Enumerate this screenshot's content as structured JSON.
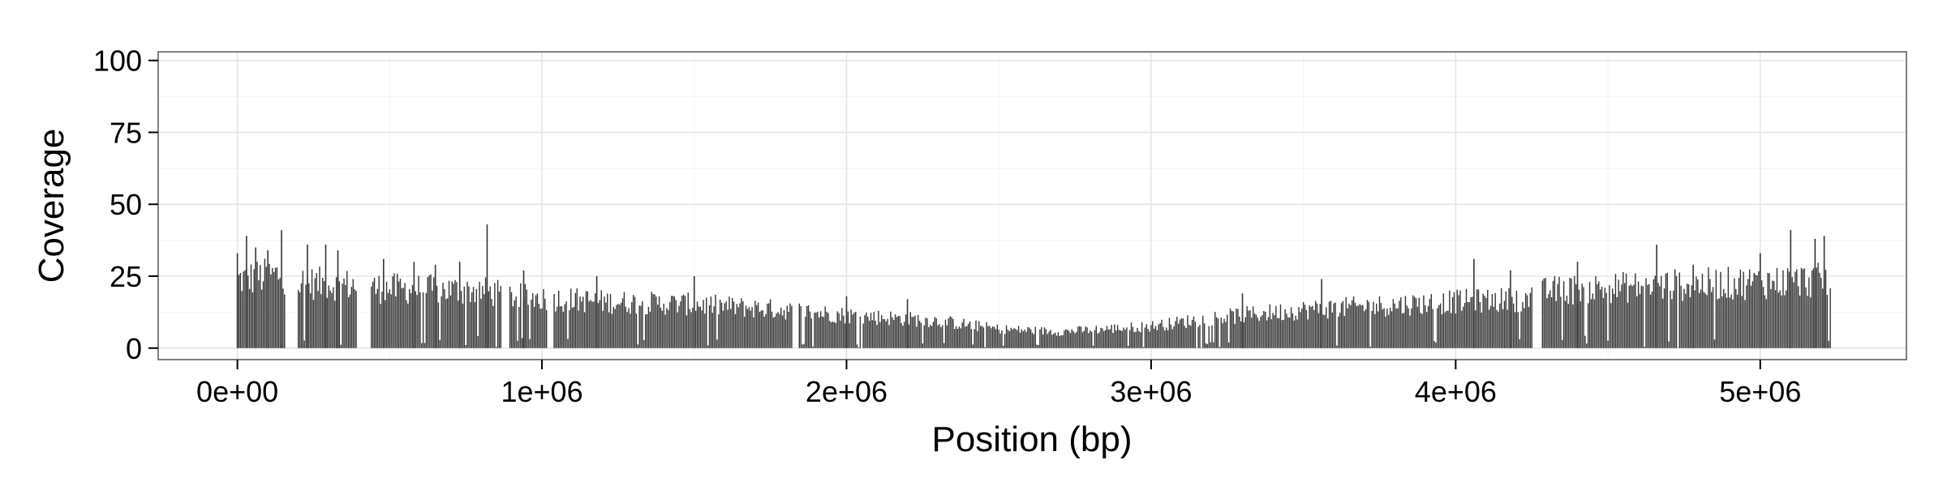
{
  "chart_data": {
    "type": "bar",
    "title": "",
    "xlabel": "Position (bp)",
    "ylabel": "Coverage",
    "xlim": [
      -260000,
      5480000
    ],
    "ylim": [
      -4,
      103
    ],
    "xticks": [
      0,
      1000000,
      2000000,
      3000000,
      4000000,
      5000000
    ],
    "xtick_labels": [
      "0e+00",
      "1e+06",
      "2e+06",
      "3e+06",
      "4e+06",
      "5e+06"
    ],
    "yticks": [
      0,
      25,
      50,
      75,
      100
    ],
    "ytick_labels": [
      "0",
      "25",
      "50",
      "75",
      "100"
    ],
    "grid": true,
    "bar_color": "#333333",
    "bin_size_bp": 5000,
    "gaps_bp": [
      [
        160000,
        200000
      ],
      [
        395000,
        440000
      ],
      [
        870000,
        895000
      ],
      [
        1020000,
        1040000
      ],
      [
        1825000,
        1845000
      ],
      [
        4255000,
        4285000
      ]
    ],
    "coverage_profile": {
      "x": [
        0,
        150000,
        160000,
        200000,
        390000,
        440000,
        800000,
        900000,
        1200000,
        1500000,
        1800000,
        2000000,
        2300000,
        2500000,
        2700000,
        3000000,
        3200000,
        3500000,
        4000000,
        4250000,
        4300000,
        4700000,
        5000000,
        5230000
      ],
      "y": [
        25,
        27,
        26,
        24,
        23,
        22,
        21,
        19,
        17,
        16,
        14,
        12,
        10,
        7,
        6,
        8,
        11,
        14,
        17,
        18,
        21,
        23,
        24,
        25
      ]
    },
    "coverage_peaks": [
      {
        "x": 0,
        "y": 33
      },
      {
        "x": 30000,
        "y": 39
      },
      {
        "x": 60000,
        "y": 35
      },
      {
        "x": 100000,
        "y": 34
      },
      {
        "x": 145000,
        "y": 41
      },
      {
        "x": 230000,
        "y": 36
      },
      {
        "x": 290000,
        "y": 36
      },
      {
        "x": 330000,
        "y": 34
      },
      {
        "x": 480000,
        "y": 31
      },
      {
        "x": 580000,
        "y": 30
      },
      {
        "x": 650000,
        "y": 29
      },
      {
        "x": 730000,
        "y": 30
      },
      {
        "x": 820000,
        "y": 43
      },
      {
        "x": 940000,
        "y": 27
      },
      {
        "x": 1180000,
        "y": 25
      },
      {
        "x": 1500000,
        "y": 25
      },
      {
        "x": 2000000,
        "y": 18
      },
      {
        "x": 2200000,
        "y": 17
      },
      {
        "x": 3300000,
        "y": 19
      },
      {
        "x": 3560000,
        "y": 24
      },
      {
        "x": 4060000,
        "y": 31
      },
      {
        "x": 4180000,
        "y": 27
      },
      {
        "x": 4400000,
        "y": 30
      },
      {
        "x": 4660000,
        "y": 36
      },
      {
        "x": 4780000,
        "y": 29
      },
      {
        "x": 5000000,
        "y": 33
      },
      {
        "x": 5100000,
        "y": 41
      },
      {
        "x": 5180000,
        "y": 38
      },
      {
        "x": 5210000,
        "y": 39
      }
    ]
  }
}
